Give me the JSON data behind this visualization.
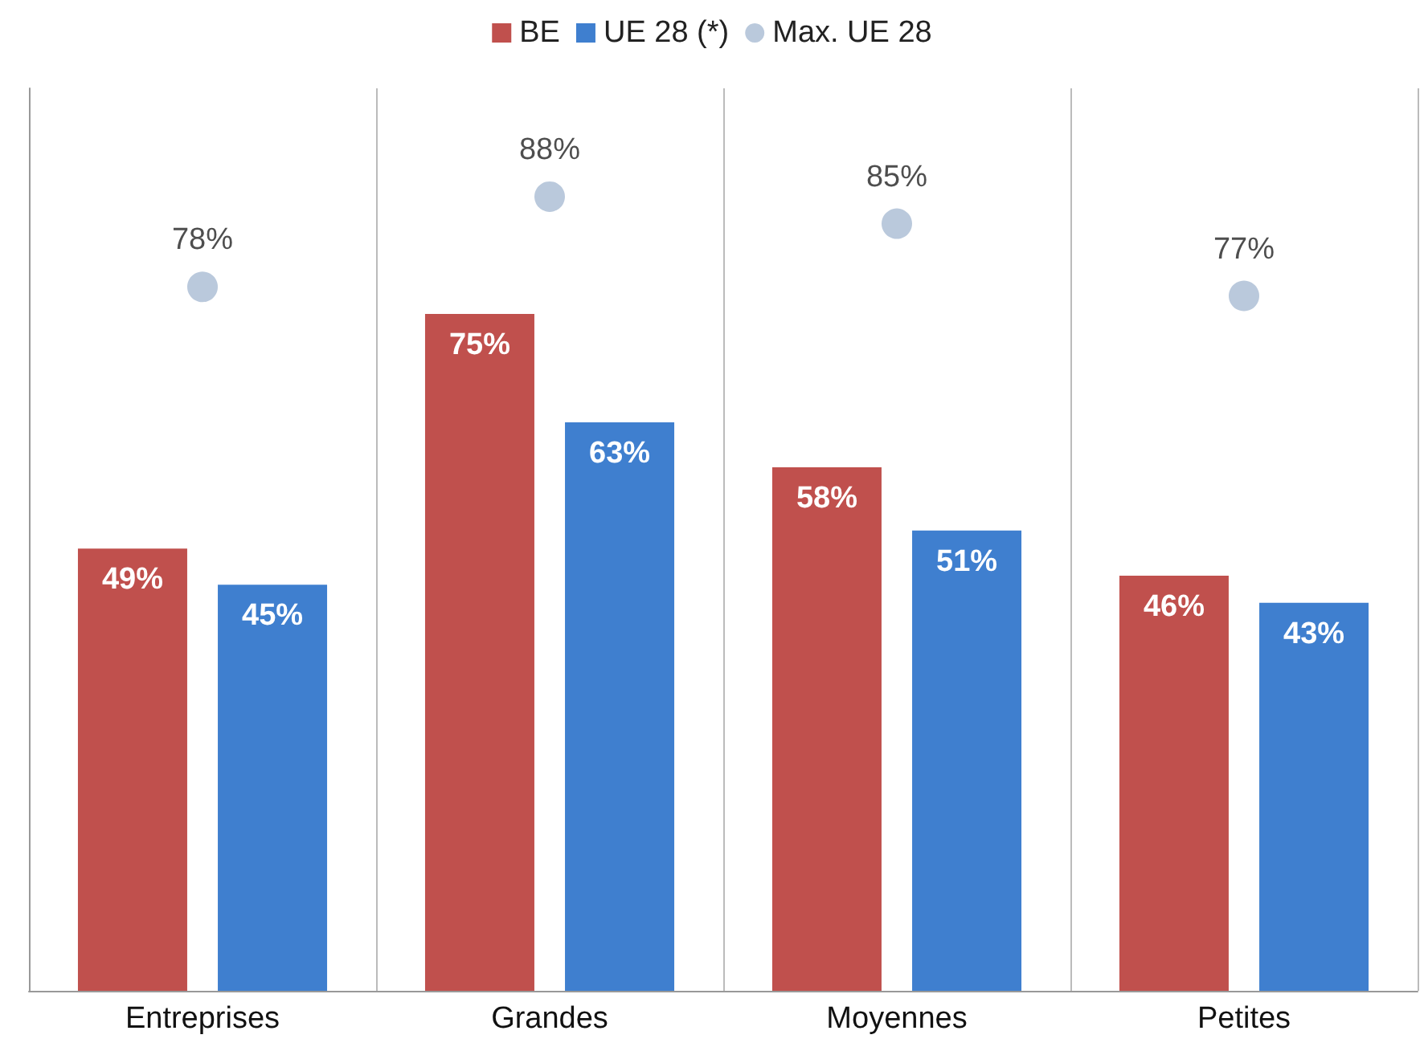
{
  "chart_data": {
    "type": "bar",
    "categories": [
      "Entreprises",
      "Grandes",
      "Moyennes",
      "Petites"
    ],
    "series": [
      {
        "name": "BE",
        "color": "#c0504d",
        "values": [
          49,
          75,
          58,
          46
        ],
        "value_labels": [
          "49%",
          "75%",
          "58%",
          "46%"
        ]
      },
      {
        "name": "UE 28 (*)",
        "color": "#3f7fcf",
        "values": [
          45,
          63,
          51,
          43
        ],
        "value_labels": [
          "45%",
          "63%",
          "51%",
          "43%"
        ]
      },
      {
        "name": "Max. UE 28",
        "type": "scatter",
        "color": "#a9bbd3",
        "x": [
          "Entreprises",
          "Grandes",
          "Moyennes",
          "Petites"
        ],
        "values": [
          78,
          88,
          85,
          77
        ],
        "value_labels": [
          "78%",
          "88%",
          "85%",
          "77%"
        ],
        "marker": "circle"
      }
    ],
    "grid": "x",
    "legend": "top",
    "tick_labels": "x"
  }
}
